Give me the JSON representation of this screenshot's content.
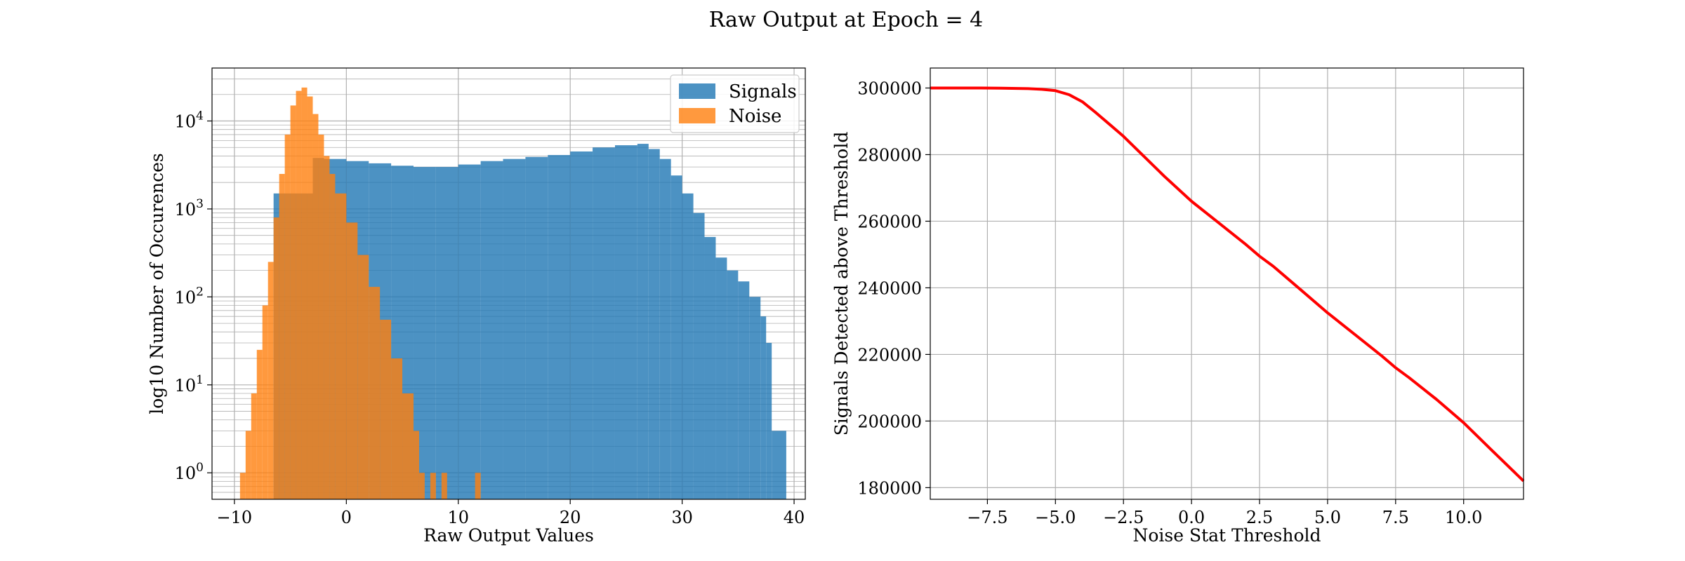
{
  "figure": {
    "title": "Raw Output at Epoch = 4"
  },
  "chart_data": [
    {
      "type": "histogram",
      "xlabel": "Raw Output Values",
      "ylabel": "log10 Number of Occurences",
      "yscale": "log",
      "xlim": [
        -12,
        41
      ],
      "ylim": [
        0.5,
        40000
      ],
      "grid": true,
      "legend_position": "top-right",
      "xticks": [
        -10,
        0,
        10,
        20,
        30,
        40
      ],
      "yticks": [
        {
          "value": 1,
          "base": "10",
          "exp": "0"
        },
        {
          "value": 10,
          "base": "10",
          "exp": "1"
        },
        {
          "value": 100,
          "base": "10",
          "exp": "2"
        },
        {
          "value": 1000,
          "base": "10",
          "exp": "3"
        },
        {
          "value": 10000,
          "base": "10",
          "exp": "4"
        }
      ],
      "series": [
        {
          "name": "Signals",
          "color": "#1f77b4",
          "bins": [
            {
              "x0": -6.5,
              "x1": -3.0,
              "count": 1500
            },
            {
              "x0": -3.0,
              "x1": -2.0,
              "count": 3800
            },
            {
              "x0": -2.0,
              "x1": 0.0,
              "count": 3700
            },
            {
              "x0": 0.0,
              "x1": 2.0,
              "count": 3500
            },
            {
              "x0": 2.0,
              "x1": 4.0,
              "count": 3300
            },
            {
              "x0": 4.0,
              "x1": 6.0,
              "count": 3100
            },
            {
              "x0": 6.0,
              "x1": 8.0,
              "count": 3000
            },
            {
              "x0": 8.0,
              "x1": 10.0,
              "count": 3000
            },
            {
              "x0": 10.0,
              "x1": 12.0,
              "count": 3200
            },
            {
              "x0": 12.0,
              "x1": 14.0,
              "count": 3500
            },
            {
              "x0": 14.0,
              "x1": 16.0,
              "count": 3700
            },
            {
              "x0": 16.0,
              "x1": 18.0,
              "count": 3900
            },
            {
              "x0": 18.0,
              "x1": 20.0,
              "count": 4100
            },
            {
              "x0": 20.0,
              "x1": 22.0,
              "count": 4500
            },
            {
              "x0": 22.0,
              "x1": 24.0,
              "count": 5000
            },
            {
              "x0": 24.0,
              "x1": 26.0,
              "count": 5300
            },
            {
              "x0": 26.0,
              "x1": 27.0,
              "count": 5500
            },
            {
              "x0": 27.0,
              "x1": 28.0,
              "count": 4800
            },
            {
              "x0": 28.0,
              "x1": 29.0,
              "count": 3700
            },
            {
              "x0": 29.0,
              "x1": 30.0,
              "count": 2400
            },
            {
              "x0": 30.0,
              "x1": 31.0,
              "count": 1500
            },
            {
              "x0": 31.0,
              "x1": 32.0,
              "count": 900
            },
            {
              "x0": 32.0,
              "x1": 33.0,
              "count": 480
            },
            {
              "x0": 33.0,
              "x1": 34.0,
              "count": 280
            },
            {
              "x0": 34.0,
              "x1": 35.0,
              "count": 200
            },
            {
              "x0": 35.0,
              "x1": 36.0,
              "count": 150
            },
            {
              "x0": 36.0,
              "x1": 37.0,
              "count": 100
            },
            {
              "x0": 37.0,
              "x1": 37.5,
              "count": 60
            },
            {
              "x0": 37.5,
              "x1": 38.0,
              "count": 30
            },
            {
              "x0": 38.0,
              "x1": 39.3,
              "count": 3
            }
          ]
        },
        {
          "name": "Noise",
          "color": "#ff7f0e",
          "bins": [
            {
              "x0": -9.5,
              "x1": -9.0,
              "count": 1
            },
            {
              "x0": -9.0,
              "x1": -8.5,
              "count": 3
            },
            {
              "x0": -8.5,
              "x1": -8.0,
              "count": 8
            },
            {
              "x0": -8.0,
              "x1": -7.5,
              "count": 25
            },
            {
              "x0": -7.5,
              "x1": -7.0,
              "count": 80
            },
            {
              "x0": -7.0,
              "x1": -6.5,
              "count": 250
            },
            {
              "x0": -6.5,
              "x1": -6.0,
              "count": 800
            },
            {
              "x0": -6.0,
              "x1": -5.5,
              "count": 2500
            },
            {
              "x0": -5.5,
              "x1": -5.0,
              "count": 7000
            },
            {
              "x0": -5.0,
              "x1": -4.5,
              "count": 15000
            },
            {
              "x0": -4.5,
              "x1": -4.0,
              "count": 22000
            },
            {
              "x0": -4.0,
              "x1": -3.5,
              "count": 24000
            },
            {
              "x0": -3.5,
              "x1": -3.0,
              "count": 19000
            },
            {
              "x0": -3.0,
              "x1": -2.5,
              "count": 12000
            },
            {
              "x0": -2.5,
              "x1": -2.0,
              "count": 7000
            },
            {
              "x0": -2.0,
              "x1": -1.5,
              "count": 4000
            },
            {
              "x0": -1.5,
              "x1": -1.0,
              "count": 2500
            },
            {
              "x0": -1.0,
              "x1": 0.0,
              "count": 1500
            },
            {
              "x0": 0.0,
              "x1": 1.0,
              "count": 700
            },
            {
              "x0": 1.0,
              "x1": 2.0,
              "count": 300
            },
            {
              "x0": 2.0,
              "x1": 3.0,
              "count": 130
            },
            {
              "x0": 3.0,
              "x1": 4.0,
              "count": 55
            },
            {
              "x0": 4.0,
              "x1": 5.0,
              "count": 20
            },
            {
              "x0": 5.0,
              "x1": 6.0,
              "count": 8
            },
            {
              "x0": 6.0,
              "x1": 6.5,
              "count": 3
            },
            {
              "x0": 6.5,
              "x1": 7.0,
              "count": 1
            },
            {
              "x0": 7.5,
              "x1": 8.0,
              "count": 1
            },
            {
              "x0": 8.5,
              "x1": 9.0,
              "count": 1
            },
            {
              "x0": 11.5,
              "x1": 12.0,
              "count": 1
            }
          ]
        }
      ]
    },
    {
      "type": "line",
      "xlabel": "Noise Stat Threshold",
      "ylabel": "Signals Detected above Threshold",
      "xlim": [
        -9.6,
        12.2
      ],
      "ylim": [
        176500,
        306000
      ],
      "grid": true,
      "xticks": [
        -7.5,
        -5.0,
        -2.5,
        0.0,
        2.5,
        5.0,
        7.5,
        10.0
      ],
      "xtick_labels": [
        "−7.5",
        "−5.0",
        "−2.5",
        "0.0",
        "2.5",
        "5.0",
        "7.5",
        "10.0"
      ],
      "yticks": [
        180000,
        200000,
        220000,
        240000,
        260000,
        280000,
        300000
      ],
      "ytick_labels": [
        "180000",
        "200000",
        "220000",
        "240000",
        "260000",
        "280000",
        "300000"
      ],
      "series": [
        {
          "color": "#ff0000",
          "x": [
            -9.6,
            -8.0,
            -7.0,
            -6.0,
            -5.5,
            -5.0,
            -4.5,
            -4.0,
            -3.5,
            -3.0,
            -2.5,
            -2.0,
            -1.0,
            0.0,
            1.0,
            2.0,
            2.5,
            3.0,
            4.0,
            5.0,
            6.0,
            7.0,
            7.5,
            8.0,
            9.0,
            10.0,
            11.0,
            12.2
          ],
          "y": [
            300000,
            300000,
            299950,
            299800,
            299600,
            299200,
            298000,
            295800,
            292500,
            289000,
            285500,
            281500,
            273500,
            266000,
            259500,
            253000,
            249500,
            246500,
            239500,
            232500,
            226000,
            219500,
            216000,
            213000,
            206500,
            199500,
            191500,
            182000
          ]
        }
      ]
    }
  ]
}
